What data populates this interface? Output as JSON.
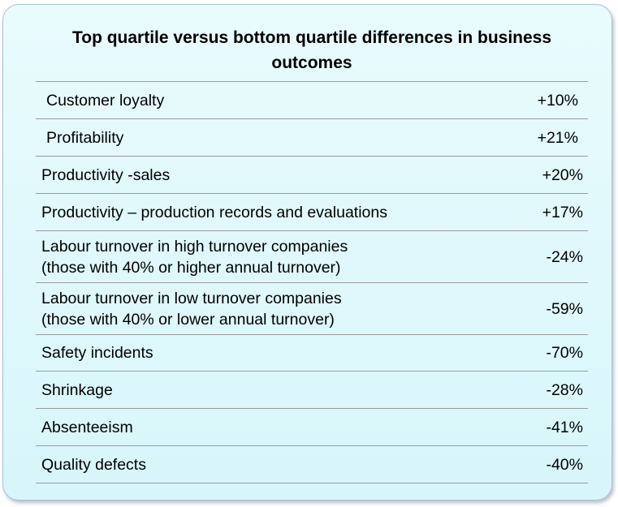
{
  "title": "Top quartile versus bottom quartile differences in business outcomes",
  "rows": [
    {
      "label": "Customer loyalty",
      "value": "+10%"
    },
    {
      "label": "Profitability",
      "value": "+21%"
    },
    {
      "label": "Productivity -sales",
      "value": "+20%"
    },
    {
      "label": "Productivity – production records and evaluations",
      "value": "+17%"
    },
    {
      "label": "Labour turnover in high turnover companies\n(those with 40% or higher annual turnover)",
      "value": "-24%"
    },
    {
      "label": "Labour turnover in low turnover companies\n(those with 40% or lower annual turnover)",
      "value": "-59%"
    },
    {
      "label": "Safety incidents",
      "value": "-70%"
    },
    {
      "label": "Shrinkage",
      "value": "-28%"
    },
    {
      "label": "Absenteeism",
      "value": "-41%"
    },
    {
      "label": "Quality defects",
      "value": "-40%"
    }
  ]
}
